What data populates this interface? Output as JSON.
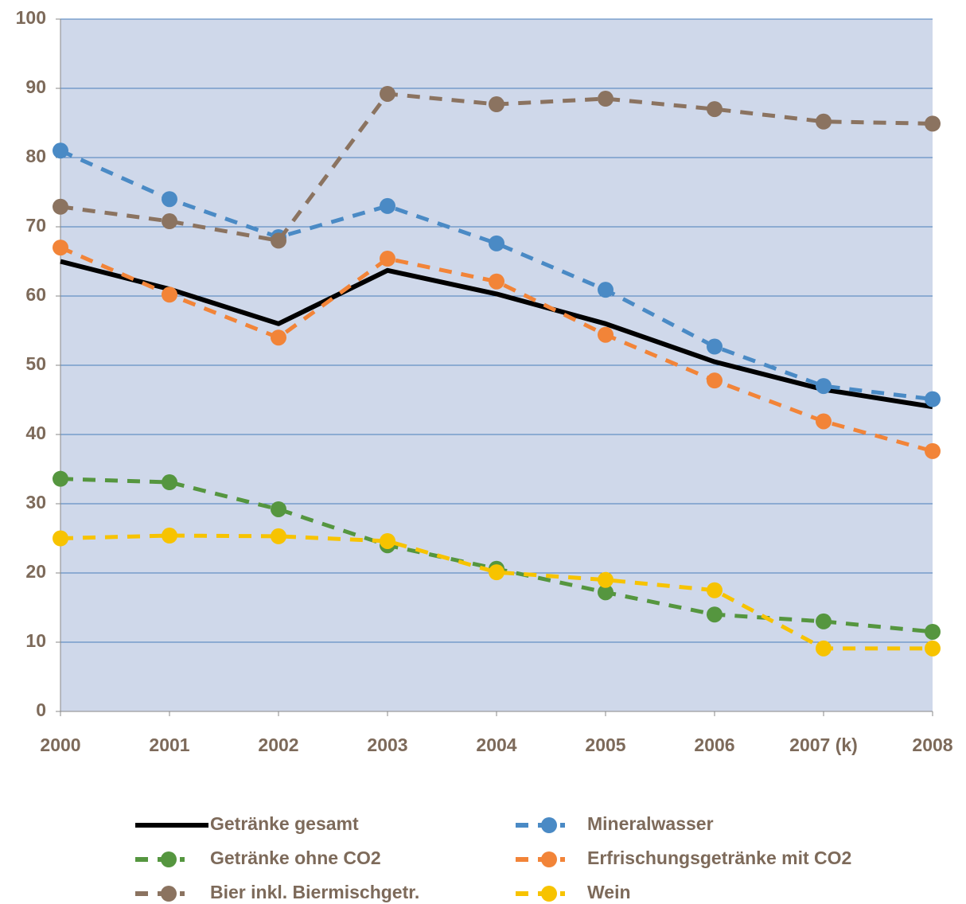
{
  "chart_data": {
    "type": "line",
    "categories": [
      "2000",
      "2001",
      "2002",
      "2003",
      "2004",
      "2005",
      "2006",
      "2007 (k)",
      "2008"
    ],
    "series": [
      {
        "name": "Getränke gesamt",
        "color": "#000000",
        "line_style": "solid",
        "marker": false,
        "values": [
          65,
          61,
          56,
          63.7,
          60.3,
          56,
          50.5,
          46.5,
          44
        ]
      },
      {
        "name": "Mineralwasser",
        "color": "#4a8ac5",
        "line_style": "dashed",
        "marker": true,
        "values": [
          81,
          74,
          68.5,
          73,
          67.6,
          60.9,
          52.7,
          47,
          45.1
        ]
      },
      {
        "name": "Getränke ohne CO2",
        "color": "#55963f",
        "line_style": "dashed",
        "marker": true,
        "values": [
          33.6,
          33.1,
          29.2,
          24,
          20.6,
          17.2,
          14,
          13,
          11.5
        ]
      },
      {
        "name": "Erfrischungsgetränke mit CO2",
        "color": "#f28438",
        "line_style": "dashed",
        "marker": true,
        "values": [
          67,
          60.2,
          54,
          65.4,
          62.1,
          54.4,
          47.8,
          41.9,
          37.6
        ]
      },
      {
        "name": "Bier inkl. Biermischgetr.",
        "color": "#8b7360",
        "line_style": "dashed",
        "marker": true,
        "values": [
          72.9,
          70.8,
          68,
          89.2,
          87.7,
          88.5,
          87,
          85.2,
          84.9
        ]
      },
      {
        "name": "Wein",
        "color": "#f7c300",
        "line_style": "dashed",
        "marker": true,
        "values": [
          25,
          25.4,
          25.3,
          24.6,
          20.1,
          19,
          17.5,
          9.1,
          9.1
        ]
      }
    ],
    "ylim": [
      0,
      100
    ],
    "yticks": [
      0,
      10,
      20,
      30,
      40,
      50,
      60,
      70,
      80,
      90,
      100
    ],
    "grid": true
  }
}
